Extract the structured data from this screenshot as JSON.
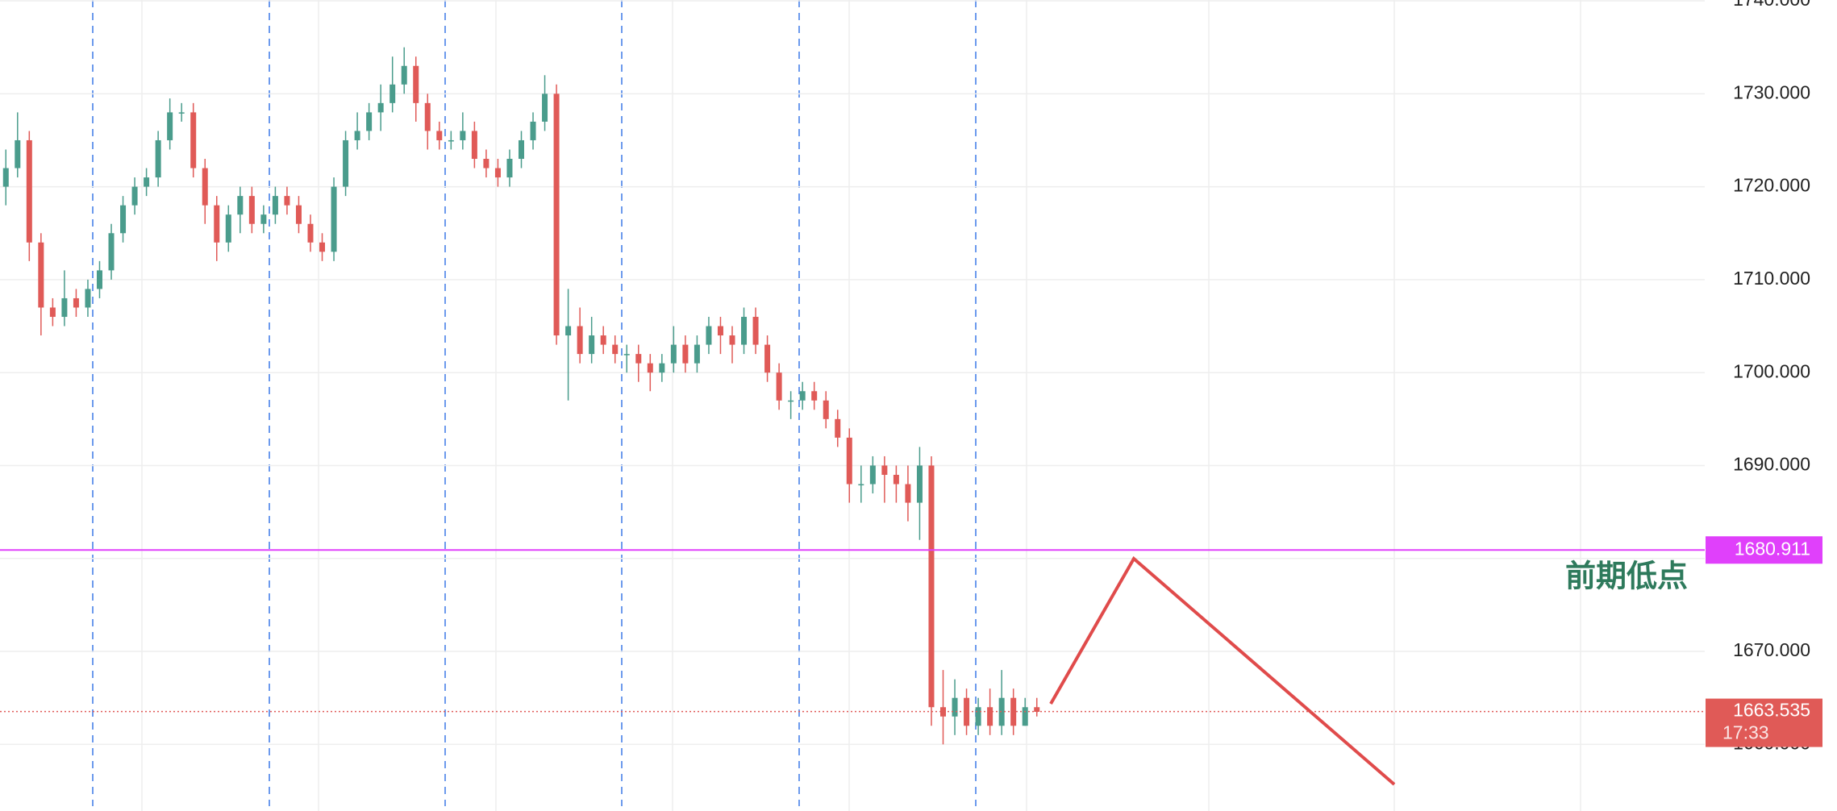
{
  "chart_data": {
    "type": "candlestick",
    "up_color": "#4a9c8c",
    "down_color": "#e05a57",
    "ylim": [
      1652.83,
      1740.09
    ],
    "yticks": [
      {
        "value": 1660,
        "label": "1660.000"
      },
      {
        "value": 1670,
        "label": "1670.000"
      },
      {
        "value": 1680,
        "label": "1680.000"
      },
      {
        "value": 1690,
        "label": "1690.000"
      },
      {
        "value": 1700,
        "label": "1700.000"
      },
      {
        "value": 1710,
        "label": "1710.000"
      },
      {
        "value": 1720,
        "label": "1720.000"
      },
      {
        "value": 1730,
        "label": "1730.000"
      },
      {
        "value": 1740,
        "label": "1740.000"
      }
    ],
    "grid": true,
    "open": [
      1720,
      1722,
      1725,
      1714,
      1707,
      1706,
      1708,
      1707,
      1709,
      1711,
      1715,
      1718,
      1720,
      1721,
      1725,
      1728,
      1728,
      1722,
      1718,
      1714,
      1717,
      1719,
      1716,
      1717,
      1719,
      1718,
      1716,
      1714,
      1713,
      1720,
      1725,
      1726,
      1728,
      1729,
      1731,
      1733,
      1729,
      1726,
      1725,
      1725,
      1726,
      1723,
      1722,
      1721,
      1723,
      1725,
      1727,
      1730,
      1704,
      1705,
      1702,
      1704,
      1703,
      1702,
      1702,
      1701,
      1700,
      1701,
      1703,
      1701,
      1703,
      1705,
      1704,
      1703,
      1706,
      1703,
      1700,
      1697,
      1697,
      1698,
      1697,
      1695,
      1693,
      1688,
      1688,
      1690,
      1689,
      1688,
      1686,
      1690,
      1664,
      1663,
      1665,
      1662,
      1664,
      1662,
      1665,
      1662,
      1664
    ],
    "high": [
      1724,
      1728,
      1726,
      1715,
      1708,
      1711,
      1709,
      1710,
      1712,
      1716,
      1719,
      1721,
      1722,
      1726,
      1729.5,
      1729,
      1729,
      1723,
      1719,
      1718,
      1720,
      1720,
      1718,
      1720,
      1720,
      1719,
      1717,
      1715,
      1721,
      1726,
      1728,
      1729,
      1731,
      1734,
      1735,
      1734,
      1730,
      1727,
      1726,
      1728,
      1727,
      1724,
      1723,
      1724,
      1726,
      1728,
      1732,
      1731,
      1709,
      1707,
      1706,
      1705,
      1704,
      1703,
      1703,
      1702,
      1702,
      1705,
      1704,
      1704,
      1706,
      1706,
      1705,
      1707,
      1707,
      1704,
      1701,
      1698,
      1699,
      1699,
      1698,
      1696,
      1694,
      1690,
      1691,
      1691,
      1690,
      1690,
      1692,
      1691,
      1668,
      1667,
      1666,
      1665,
      1666,
      1668,
      1666,
      1665,
      1665
    ],
    "low": [
      1718,
      1721,
      1712,
      1704,
      1705,
      1705,
      1706,
      1706,
      1708,
      1710,
      1714,
      1717,
      1719,
      1720,
      1724,
      1727,
      1721,
      1716,
      1712,
      1713,
      1715,
      1715,
      1715,
      1716,
      1717,
      1715,
      1713,
      1712,
      1712,
      1719,
      1724,
      1725,
      1726,
      1728,
      1730,
      1727,
      1724,
      1724,
      1724,
      1724,
      1722,
      1721,
      1720,
      1720,
      1722,
      1724,
      1726,
      1703,
      1697,
      1701,
      1701,
      1702,
      1701,
      1700,
      1699,
      1698,
      1699,
      1700,
      1700,
      1700,
      1702,
      1702,
      1701,
      1702,
      1702,
      1699,
      1696,
      1695,
      1696,
      1696,
      1694,
      1692,
      1686,
      1686,
      1687,
      1686,
      1686,
      1684,
      1682,
      1662,
      1660,
      1661,
      1661,
      1661,
      1661,
      1661,
      1661,
      1662,
      1663
    ],
    "close": [
      1722,
      1725,
      1714,
      1707,
      1706,
      1708,
      1707,
      1709,
      1711,
      1715,
      1718,
      1720,
      1721,
      1725,
      1728,
      1728,
      1722,
      1718,
      1714,
      1717,
      1719,
      1716,
      1717,
      1719,
      1718,
      1716,
      1714,
      1713,
      1720,
      1725,
      1726,
      1728,
      1729,
      1731,
      1733,
      1729,
      1726,
      1725,
      1725,
      1726,
      1723,
      1722,
      1721,
      1723,
      1725,
      1727,
      1730,
      1704,
      1705,
      1702,
      1704,
      1703,
      1702,
      1702,
      1701,
      1700,
      1701,
      1703,
      1701,
      1703,
      1705,
      1704,
      1703,
      1706,
      1703,
      1700,
      1697,
      1697,
      1698,
      1697,
      1695,
      1693,
      1688,
      1688,
      1690,
      1689,
      1688,
      1686,
      1690,
      1664,
      1663,
      1665,
      1662,
      1664,
      1662,
      1665,
      1662,
      1664,
      1663.5
    ],
    "price_line": {
      "value": 1680.911,
      "color": "#e040fb"
    },
    "last_price": {
      "value": 1663.535,
      "countdown": "17:33",
      "color": "#e05a57"
    },
    "annotation": "前期低点"
  }
}
